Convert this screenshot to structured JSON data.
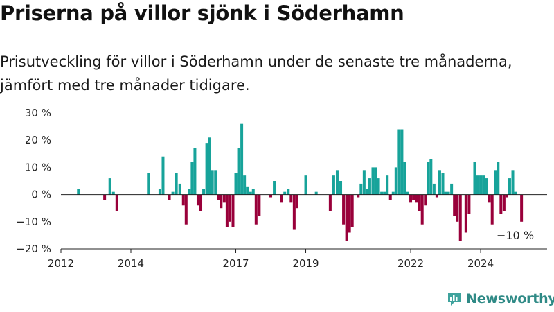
{
  "title": "Priserna på villor sjönk i Söderhamn",
  "subtitle": "Prisutveckling för villor i Söderhamn under de senaste tre månaderna, jämfört med tre månader tidigare.",
  "brand": "Newsworthy",
  "colors": {
    "positive": "#17a39a",
    "negative": "#99003a",
    "axis": "#222222",
    "brand": "#2f8a86"
  },
  "chart_data": {
    "type": "bar",
    "title": "",
    "xlabel": "",
    "ylabel": "",
    "ylim": [
      -20,
      30
    ],
    "y_ticks": [
      -20,
      -10,
      0,
      10,
      20,
      30
    ],
    "y_tick_labels": [
      "−20 %",
      "−10 %",
      "0 %",
      "10 %",
      "20 %",
      "30 %"
    ],
    "x_tick_labels": [
      {
        "label": "2012",
        "date": 2012.0
      },
      {
        "label": "2014",
        "date": 2014.0
      },
      {
        "label": "2017",
        "date": 2017.0
      },
      {
        "label": "2019",
        "date": 2019.0
      },
      {
        "label": "2022",
        "date": 2022.0
      },
      {
        "label": "2024",
        "date": 2024.0
      }
    ],
    "grid": false,
    "annotation": {
      "text": "−10 %",
      "date": 2024.75,
      "value": -10
    },
    "series": [
      {
        "unit": "%",
        "points": [
          {
            "date": 2012.5,
            "value": 2
          },
          {
            "date": 2013.25,
            "value": -2
          },
          {
            "date": 2013.4,
            "value": 6
          },
          {
            "date": 2013.5,
            "value": 1
          },
          {
            "date": 2013.6,
            "value": -6
          },
          {
            "date": 2014.5,
            "value": 8
          },
          {
            "date": 2014.83,
            "value": 2
          },
          {
            "date": 2014.92,
            "value": 14
          },
          {
            "date": 2015.1,
            "value": -2
          },
          {
            "date": 2015.2,
            "value": 1
          },
          {
            "date": 2015.3,
            "value": 8
          },
          {
            "date": 2015.4,
            "value": 4
          },
          {
            "date": 2015.5,
            "value": -4
          },
          {
            "date": 2015.58,
            "value": -11
          },
          {
            "date": 2015.67,
            "value": 2
          },
          {
            "date": 2015.75,
            "value": 12
          },
          {
            "date": 2015.83,
            "value": 17
          },
          {
            "date": 2015.92,
            "value": -4
          },
          {
            "date": 2016.0,
            "value": -6
          },
          {
            "date": 2016.08,
            "value": 2
          },
          {
            "date": 2016.17,
            "value": 19
          },
          {
            "date": 2016.25,
            "value": 21
          },
          {
            "date": 2016.33,
            "value": 9
          },
          {
            "date": 2016.42,
            "value": 9
          },
          {
            "date": 2016.5,
            "value": -2
          },
          {
            "date": 2016.58,
            "value": -5
          },
          {
            "date": 2016.67,
            "value": -3
          },
          {
            "date": 2016.75,
            "value": -12
          },
          {
            "date": 2016.83,
            "value": -10
          },
          {
            "date": 2016.92,
            "value": -12
          },
          {
            "date": 2017.0,
            "value": 8
          },
          {
            "date": 2017.08,
            "value": 17
          },
          {
            "date": 2017.17,
            "value": 26
          },
          {
            "date": 2017.25,
            "value": 7
          },
          {
            "date": 2017.33,
            "value": 3
          },
          {
            "date": 2017.42,
            "value": 1
          },
          {
            "date": 2017.5,
            "value": 2
          },
          {
            "date": 2017.58,
            "value": -11
          },
          {
            "date": 2017.67,
            "value": -8
          },
          {
            "date": 2018.0,
            "value": -1
          },
          {
            "date": 2018.1,
            "value": 5
          },
          {
            "date": 2018.3,
            "value": -3
          },
          {
            "date": 2018.4,
            "value": 1
          },
          {
            "date": 2018.5,
            "value": 2
          },
          {
            "date": 2018.58,
            "value": -3
          },
          {
            "date": 2018.67,
            "value": -13
          },
          {
            "date": 2018.75,
            "value": -5
          },
          {
            "date": 2019.0,
            "value": 7
          },
          {
            "date": 2019.3,
            "value": 1
          },
          {
            "date": 2019.7,
            "value": -6
          },
          {
            "date": 2019.8,
            "value": 7
          },
          {
            "date": 2019.9,
            "value": 9
          },
          {
            "date": 2020.0,
            "value": 5
          },
          {
            "date": 2020.08,
            "value": -11
          },
          {
            "date": 2020.17,
            "value": -17
          },
          {
            "date": 2020.25,
            "value": -14
          },
          {
            "date": 2020.33,
            "value": -12
          },
          {
            "date": 2020.5,
            "value": -1
          },
          {
            "date": 2020.58,
            "value": 4
          },
          {
            "date": 2020.67,
            "value": 9
          },
          {
            "date": 2020.75,
            "value": 2
          },
          {
            "date": 2020.83,
            "value": 6
          },
          {
            "date": 2020.92,
            "value": 10
          },
          {
            "date": 2021.0,
            "value": 10
          },
          {
            "date": 2021.08,
            "value": 6
          },
          {
            "date": 2021.17,
            "value": 1
          },
          {
            "date": 2021.25,
            "value": 1
          },
          {
            "date": 2021.33,
            "value": 7
          },
          {
            "date": 2021.42,
            "value": -2
          },
          {
            "date": 2021.5,
            "value": 1
          },
          {
            "date": 2021.58,
            "value": 10
          },
          {
            "date": 2021.67,
            "value": 24
          },
          {
            "date": 2021.75,
            "value": 24
          },
          {
            "date": 2021.83,
            "value": 12
          },
          {
            "date": 2021.92,
            "value": 1
          },
          {
            "date": 2022.0,
            "value": -3
          },
          {
            "date": 2022.08,
            "value": -2
          },
          {
            "date": 2022.17,
            "value": -3
          },
          {
            "date": 2022.25,
            "value": -6
          },
          {
            "date": 2022.33,
            "value": -11
          },
          {
            "date": 2022.42,
            "value": -4
          },
          {
            "date": 2022.5,
            "value": 12
          },
          {
            "date": 2022.58,
            "value": 13
          },
          {
            "date": 2022.67,
            "value": 4
          },
          {
            "date": 2022.75,
            "value": -1
          },
          {
            "date": 2022.83,
            "value": 9
          },
          {
            "date": 2022.92,
            "value": 8
          },
          {
            "date": 2023.0,
            "value": 1
          },
          {
            "date": 2023.08,
            "value": 1
          },
          {
            "date": 2023.17,
            "value": 4
          },
          {
            "date": 2023.25,
            "value": -8
          },
          {
            "date": 2023.33,
            "value": -10
          },
          {
            "date": 2023.42,
            "value": -17
          },
          {
            "date": 2023.58,
            "value": -14
          },
          {
            "date": 2023.67,
            "value": -7
          },
          {
            "date": 2023.83,
            "value": 12
          },
          {
            "date": 2023.92,
            "value": 7
          },
          {
            "date": 2024.0,
            "value": 7
          },
          {
            "date": 2024.08,
            "value": 7
          },
          {
            "date": 2024.17,
            "value": 6
          },
          {
            "date": 2024.25,
            "value": -3
          },
          {
            "date": 2024.33,
            "value": -11
          },
          {
            "date": 2024.42,
            "value": 9
          },
          {
            "date": 2024.5,
            "value": 12
          },
          {
            "date": 2024.58,
            "value": -7
          },
          {
            "date": 2024.67,
            "value": -6
          },
          {
            "date": 2024.75,
            "value": -1
          },
          {
            "date": 2024.83,
            "value": 6
          },
          {
            "date": 2024.92,
            "value": 9
          },
          {
            "date": 2025.0,
            "value": 1
          },
          {
            "date": 2025.17,
            "value": -10
          }
        ]
      }
    ]
  }
}
